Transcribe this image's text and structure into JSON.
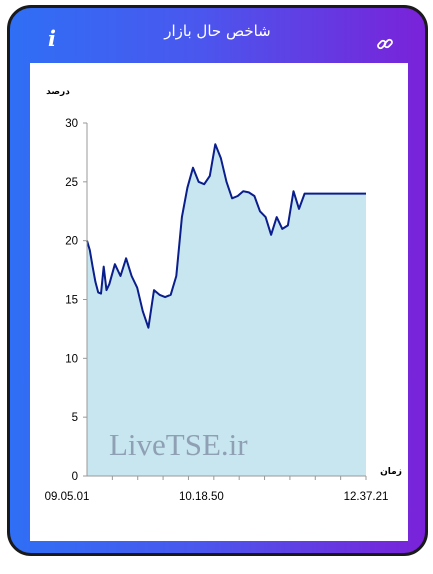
{
  "header": {
    "title": "شاخص حال بازار",
    "info_icon": "info-icon",
    "link_icon": "link-icon"
  },
  "watermark": "LiveTSE.ir",
  "colors": {
    "line": "#0a1e8c",
    "area": "#c8e6f0",
    "gradient_start": "#2f6ff5",
    "gradient_end": "#7a22d9"
  },
  "chart_data": {
    "type": "area",
    "ylabel": "درصد",
    "xlabel": "زمان",
    "ylim": [
      0,
      30
    ],
    "y_ticks": [
      "0",
      "5",
      "10",
      "15",
      "20",
      "25",
      "30"
    ],
    "x_ticks": [
      "09.05.01",
      "10.18.50",
      "12.37.21"
    ],
    "grid": false,
    "series": [
      {
        "x": [
          0,
          1,
          2,
          3,
          4,
          5,
          6,
          7,
          8,
          10,
          12,
          14,
          16,
          18,
          20,
          22,
          24,
          26,
          28,
          30,
          32,
          34,
          36,
          38,
          40,
          42,
          44,
          46,
          48,
          50,
          52,
          54,
          56,
          58,
          60,
          62,
          64,
          66,
          68,
          70,
          72,
          74,
          76,
          78,
          80,
          82,
          84,
          86,
          88,
          90,
          92,
          94,
          96,
          98,
          100
        ],
        "values": [
          20.0,
          19.2,
          17.8,
          16.5,
          15.6,
          15.5,
          17.8,
          15.8,
          16.3,
          18.0,
          17.0,
          18.5,
          17.0,
          16.0,
          14.0,
          12.6,
          15.8,
          15.4,
          15.2,
          15.4,
          17.0,
          22.0,
          24.5,
          26.2,
          25.0,
          24.8,
          25.5,
          28.2,
          27.0,
          25.0,
          23.6,
          23.8,
          24.2,
          24.1,
          23.8,
          22.5,
          22.0,
          20.5,
          22.0,
          21.0,
          21.3,
          24.2,
          22.7,
          24.0,
          24.0,
          24.0,
          24.0,
          24.0,
          24.0,
          24.0,
          24.0,
          24.0,
          24.0,
          24.0,
          24.0
        ]
      }
    ]
  }
}
